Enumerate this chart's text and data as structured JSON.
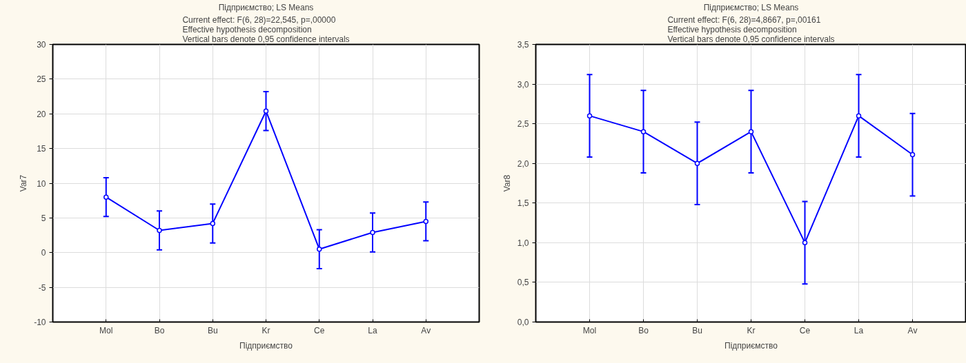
{
  "chart_data": [
    {
      "type": "line",
      "title": "Підприємство; LS Means",
      "subtitle": "Current effect: F(6, 28)=22,545, p=,00000\nEffective hypothesis decomposition\nVertical bars denote 0,95 confidence intervals",
      "xlabel": "Підприємство",
      "ylabel": "Var7",
      "categories": [
        "Mol",
        "Bo",
        "Bu",
        "Kr",
        "Ce",
        "La",
        "Av"
      ],
      "series": [
        {
          "color": "#0000ff",
          "values": [
            8.0,
            3.2,
            4.2,
            20.4,
            0.5,
            2.9,
            4.5
          ],
          "errors": [
            2.8,
            2.8,
            2.8,
            2.8,
            2.8,
            2.8,
            2.8
          ]
        }
      ],
      "ylim": [
        -10,
        30
      ],
      "yticks": [
        -10,
        -5,
        0,
        5,
        10,
        15,
        20,
        25,
        30
      ],
      "grid": true,
      "marker": "circle",
      "line_style": "solid"
    },
    {
      "type": "line",
      "title": "Підприємство; LS Means",
      "subtitle": "Current effect: F(6, 28)=4,8667, p=,00161\nEffective hypothesis decomposition\nVertical bars denote 0,95 confidence intervals",
      "xlabel": "Підприємство",
      "ylabel": "Var8",
      "categories": [
        "Mol",
        "Bo",
        "Bu",
        "Kr",
        "Ce",
        "La",
        "Av"
      ],
      "series": [
        {
          "color": "#0000ff",
          "values": [
            2.6,
            2.4,
            2.0,
            2.4,
            1.0,
            2.6,
            2.11
          ],
          "errors": [
            0.52,
            0.52,
            0.52,
            0.52,
            0.52,
            0.52,
            0.52
          ]
        }
      ],
      "ylim": [
        0,
        3.5
      ],
      "yticks": [
        {
          "value": 0,
          "label": "0,0"
        },
        {
          "value": 0.5,
          "label": "0,5"
        },
        {
          "value": 1,
          "label": "1,0"
        },
        {
          "value": 1.5,
          "label": "1,5"
        },
        {
          "value": 2,
          "label": "2,0"
        },
        {
          "value": 2.5,
          "label": "2,5"
        },
        {
          "value": 3,
          "label": "3,0"
        },
        {
          "value": 3.5,
          "label": "3,5"
        }
      ],
      "grid": true,
      "marker": "circle",
      "line_style": "solid"
    }
  ]
}
